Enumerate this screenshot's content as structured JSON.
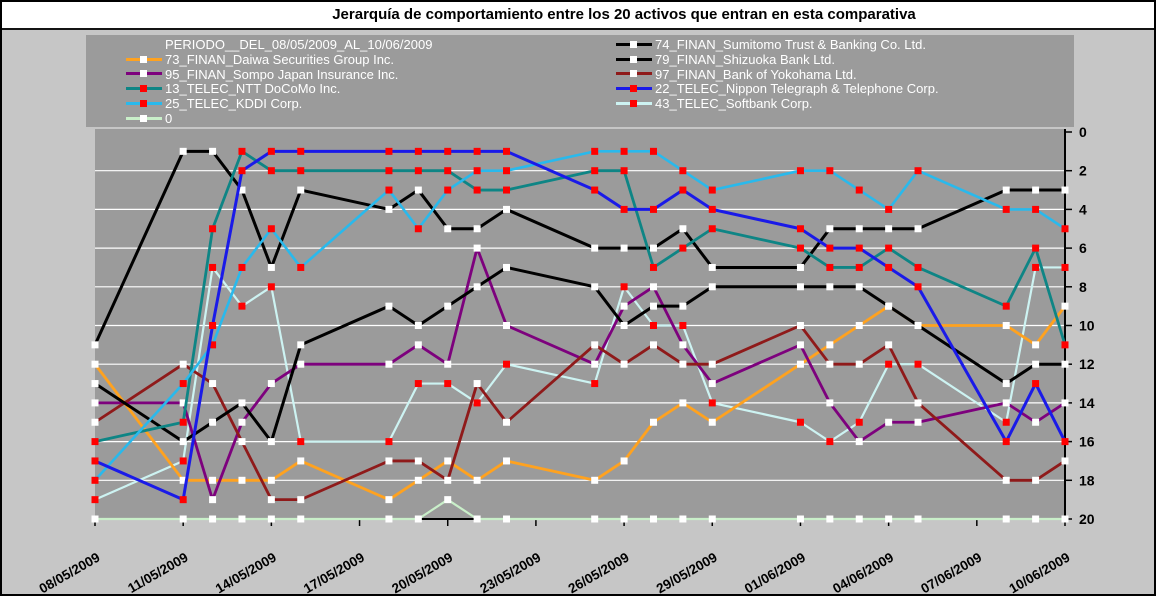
{
  "window": {
    "background": "#C6C6C6",
    "panel_gray": "#9B9B9B",
    "title_band": "#FFFFFF",
    "border": "#000000",
    "gridline": "#FFFFFF",
    "axis_color": "#000000",
    "legend_text_color": "#FFFFFF"
  },
  "chart_data": {
    "type": "line",
    "title": "Jerarquía de comportamiento entre los 20 activos que entran en esta comparativa",
    "period_label": "PERIODO__DEL_08/05/2009_AL_10/06/2009",
    "ylabel": "",
    "xlabel": "",
    "y_axis_side": "right",
    "y_meaning": "rank position (1 = top of hierarchy, plotted downward)",
    "ylim": [
      0,
      20
    ],
    "y_ticks": [
      0,
      2,
      4,
      6,
      8,
      10,
      12,
      14,
      16,
      18,
      20
    ],
    "x_tick_labels": [
      "08/05/2009",
      "11/05/2009",
      "14/05/2009",
      "17/05/2009",
      "20/05/2009",
      "23/05/2009",
      "26/05/2009",
      "29/05/2009",
      "01/06/2009",
      "04/06/2009",
      "07/06/2009",
      "10/06/2009"
    ],
    "x_tick_day_offsets": [
      0,
      3,
      6,
      9,
      12,
      15,
      18,
      21,
      24,
      27,
      30,
      33
    ],
    "x_dates": [
      "08/05",
      "11/05",
      "12/05",
      "13/05",
      "14/05",
      "15/05",
      "18/05",
      "19/05",
      "20/05",
      "21/05",
      "22/05",
      "25/05",
      "26/05",
      "27/05",
      "28/05",
      "29/05",
      "01/06",
      "02/06",
      "03/06",
      "04/06",
      "05/06",
      "08/06",
      "09/06",
      "10/06"
    ],
    "x_day_offsets": [
      0,
      3,
      4,
      5,
      6,
      7,
      10,
      11,
      12,
      13,
      14,
      17,
      18,
      19,
      20,
      21,
      24,
      25,
      26,
      27,
      28,
      31,
      32,
      33
    ],
    "grid": "horizontal-only",
    "legend_position": "top-panel-two-columns",
    "legend": {
      "left": [
        "periodo",
        "73",
        "95",
        "13",
        "25",
        "0"
      ],
      "right": [
        "74",
        "79",
        "97",
        "22",
        "43"
      ]
    },
    "z_order": [
      "0",
      "43",
      "73",
      "95",
      "97",
      "79",
      "74",
      "13",
      "25",
      "22"
    ],
    "series": [
      {
        "id": "74",
        "label": "74_FINAN_Sumitomo Trust & Banking Co. Ltd.",
        "color": "#000000",
        "marker": "#FFFFFF",
        "width": 3,
        "values": [
          11,
          1,
          1,
          3,
          7,
          3,
          4,
          3,
          5,
          5,
          4,
          6,
          6,
          6,
          5,
          7,
          7,
          5,
          5,
          5,
          5,
          3,
          3,
          3
        ]
      },
      {
        "id": "73",
        "label": "73_FINAN_Daiwa Securities Group Inc.",
        "color": "#FFA21F",
        "marker": "#FFFFFF",
        "width": 2.8,
        "values": [
          12,
          18,
          18,
          18,
          18,
          17,
          19,
          18,
          17,
          18,
          17,
          18,
          17,
          15,
          14,
          15,
          12,
          11,
          10,
          9,
          10,
          10,
          11,
          9
        ]
      },
      {
        "id": "79",
        "label": "79_FINAN_Shizuoka Bank Ltd.",
        "color": "#000000",
        "marker": "#FFFFFF",
        "width": 3,
        "values": [
          13,
          16,
          15,
          14,
          16,
          11,
          9,
          10,
          9,
          8,
          7,
          8,
          10,
          9,
          9,
          8,
          8,
          8,
          8,
          9,
          10,
          13,
          12,
          12
        ]
      },
      {
        "id": "95",
        "label": "95_FINAN_Sompo Japan Insurance Inc.",
        "color": "#7D017D",
        "marker": "#FFFFFF",
        "width": 2.8,
        "values": [
          14,
          14,
          19,
          15,
          13,
          12,
          12,
          11,
          12,
          6,
          10,
          12,
          9,
          8,
          11,
          13,
          11,
          14,
          16,
          15,
          15,
          14,
          15,
          14
        ]
      },
      {
        "id": "97",
        "label": "97_FINAN_Bank of Yokohama Ltd.",
        "color": "#8F1A1A",
        "marker": "#FFFFFF",
        "width": 2.8,
        "values": [
          15,
          12,
          13,
          16,
          19,
          19,
          17,
          17,
          18,
          13,
          15,
          11,
          12,
          11,
          12,
          12,
          10,
          12,
          12,
          11,
          14,
          18,
          18,
          17
        ]
      },
      {
        "id": "13",
        "label": "13_TELEC_NTT DoCoMo Inc.",
        "color": "#0E8585",
        "marker": "#FF0000",
        "width": 2.8,
        "values": [
          16,
          15,
          5,
          1,
          2,
          2,
          2,
          2,
          2,
          3,
          3,
          2,
          2,
          7,
          6,
          5,
          6,
          7,
          7,
          6,
          7,
          9,
          6,
          11
        ]
      },
      {
        "id": "22",
        "label": "22_TELEC_Nippon Telegraph & Telephone Corp.",
        "color": "#1A1AE8",
        "marker": "#FF0000",
        "width": 3,
        "values": [
          17,
          19,
          10,
          2,
          1,
          1,
          1,
          1,
          1,
          1,
          1,
          3,
          4,
          4,
          3,
          4,
          5,
          6,
          6,
          7,
          8,
          16,
          13,
          16
        ]
      },
      {
        "id": "25",
        "label": "25_TELEC_KDDI Corp.",
        "color": "#29B9EC",
        "marker": "#FF0000",
        "width": 2.6,
        "values": [
          18,
          13,
          11,
          7,
          5,
          7,
          3,
          5,
          3,
          2,
          2,
          1,
          1,
          1,
          2,
          3,
          2,
          2,
          3,
          4,
          2,
          4,
          4,
          5
        ]
      },
      {
        "id": "43",
        "label": "43_TELEC_Softbank Corp.",
        "color": "#CDF3F2",
        "marker": "#FF0000",
        "width": 2.2,
        "values": [
          19,
          17,
          7,
          9,
          8,
          16,
          16,
          13,
          13,
          14,
          12,
          13,
          8,
          10,
          10,
          14,
          15,
          16,
          15,
          12,
          12,
          15,
          7,
          7
        ]
      },
      {
        "id": "0",
        "label": "0",
        "color": "#C9EFC9",
        "marker": "#FFFFFF",
        "width": 2.2,
        "values": [
          20,
          20,
          20,
          20,
          20,
          20,
          20,
          20,
          19,
          20,
          20,
          20,
          20,
          20,
          20,
          20,
          20,
          20,
          20,
          20,
          20,
          20,
          20,
          20
        ]
      }
    ]
  }
}
